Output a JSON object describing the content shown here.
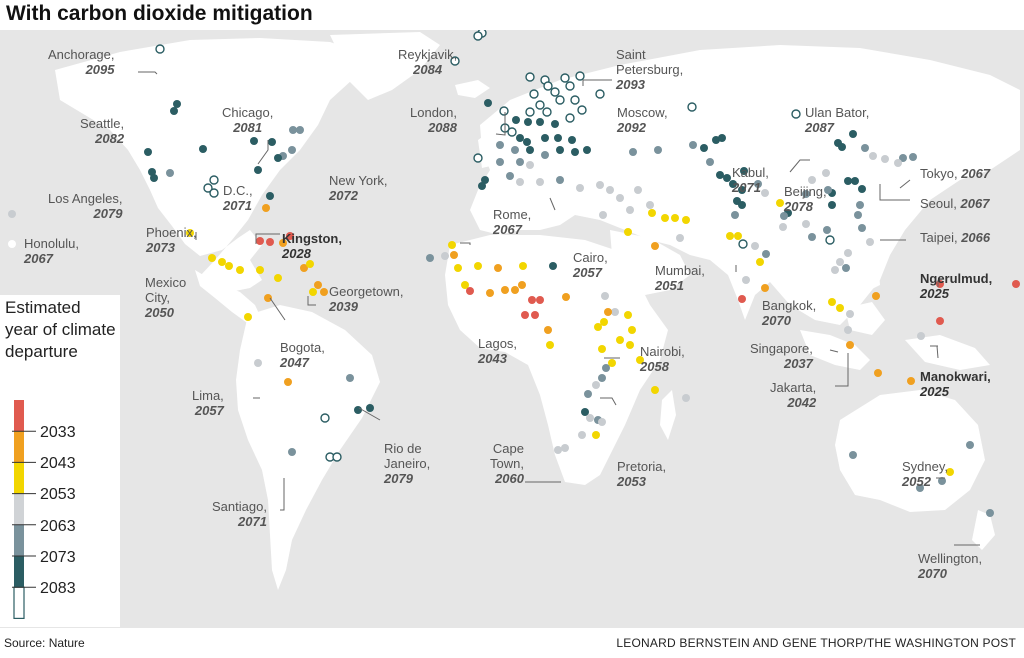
{
  "title": "With carbon dioxide mitigation",
  "legend": {
    "title": "Estimated year of climate departure",
    "ticks": [
      "2033",
      "2043",
      "2053",
      "2063",
      "2073",
      "2083"
    ],
    "colors": [
      "#e05a4f",
      "#f0a020",
      "#f2d600",
      "#d0d3d6",
      "#7a929c",
      "#2b5d63",
      "#ffffff"
    ]
  },
  "cities": [
    {
      "name": "Anchorage,",
      "year": "2095"
    },
    {
      "name": "Reykjavik,",
      "year": "2084"
    },
    {
      "name": "Saint Petersburg,",
      "year": "2093"
    },
    {
      "name": "Seattle,",
      "year": "2082"
    },
    {
      "name": "Chicago,",
      "year": "2081"
    },
    {
      "name": "London,",
      "year": "2088"
    },
    {
      "name": "Moscow,",
      "year": "2092"
    },
    {
      "name": "Ulan Bator,",
      "year": "2087"
    },
    {
      "name": "Los Angeles,",
      "year": "2079"
    },
    {
      "name": "D.C.,",
      "year": "2071"
    },
    {
      "name": "New York,",
      "year": "2072"
    },
    {
      "name": "Kabul,",
      "year": "2071"
    },
    {
      "name": "Tokyo,",
      "year": "2067"
    },
    {
      "name": "Beijing,",
      "year": "2078"
    },
    {
      "name": "Seoul,",
      "year": "2067"
    },
    {
      "name": "Honolulu,",
      "year": "2067"
    },
    {
      "name": "Phoenix,",
      "year": "2073"
    },
    {
      "name": "Kingston,",
      "year": "2028"
    },
    {
      "name": "Rome,",
      "year": "2067"
    },
    {
      "name": "Taipei,",
      "year": "2066"
    },
    {
      "name": "Cairo,",
      "year": "2057"
    },
    {
      "name": "Mumbai,",
      "year": "2051"
    },
    {
      "name": "Mexico City,",
      "year": "2050"
    },
    {
      "name": "Georgetown,",
      "year": "2039"
    },
    {
      "name": "Ngerulmud,",
      "year": "2025"
    },
    {
      "name": "Bangkok,",
      "year": "2070"
    },
    {
      "name": "Bogota,",
      "year": "2047"
    },
    {
      "name": "Lagos,",
      "year": "2043"
    },
    {
      "name": "Nairobi,",
      "year": "2058"
    },
    {
      "name": "Singapore,",
      "year": "2037"
    },
    {
      "name": "Manokwari,",
      "year": "2025"
    },
    {
      "name": "Lima,",
      "year": "2057"
    },
    {
      "name": "Jakarta,",
      "year": "2042"
    },
    {
      "name": "Rio de Janeiro,",
      "year": "2079"
    },
    {
      "name": "Cape Town,",
      "year": "2060"
    },
    {
      "name": "Pretoria,",
      "year": "2053"
    },
    {
      "name": "Sydney,",
      "year": "2052"
    },
    {
      "name": "Santiago,",
      "year": "2071"
    },
    {
      "name": "Wellington,",
      "year": "2070"
    }
  ],
  "source": "Source: Nature",
  "credit": "LEONARD BERNSTEIN AND GENE THORP/THE WASHINGTON POST"
}
